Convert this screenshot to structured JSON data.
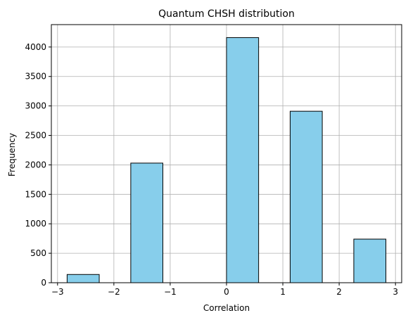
{
  "chart_data": {
    "type": "bar",
    "title": "Quantum CHSH distribution",
    "xlabel": "Correlation",
    "ylabel": "Frequency",
    "xlim": [
      -3.11,
      3.11
    ],
    "ylim": [
      0,
      4380
    ],
    "grid": true,
    "bar_color": "#87ceeb",
    "edge_color": "#000000",
    "grid_color": "#b0b0b0",
    "bins": [
      {
        "x0": -2.83,
        "x1": -2.26,
        "value": 140
      },
      {
        "x0": -2.26,
        "x1": -1.7,
        "value": 0
      },
      {
        "x0": -1.7,
        "x1": -1.13,
        "value": 2030
      },
      {
        "x0": -1.13,
        "x1": -0.57,
        "value": 0
      },
      {
        "x0": -0.57,
        "x1": 0.0,
        "value": 0
      },
      {
        "x0": 0.0,
        "x1": 0.57,
        "value": 4160
      },
      {
        "x0": 0.57,
        "x1": 1.13,
        "value": 0
      },
      {
        "x0": 1.13,
        "x1": 1.7,
        "value": 2910
      },
      {
        "x0": 1.7,
        "x1": 2.26,
        "value": 0
      },
      {
        "x0": 2.26,
        "x1": 2.83,
        "value": 740
      }
    ],
    "x_ticks": [
      {
        "value": -3,
        "label": "−3"
      },
      {
        "value": -2,
        "label": "−2"
      },
      {
        "value": -1,
        "label": "−1"
      },
      {
        "value": 0,
        "label": "0"
      },
      {
        "value": 1,
        "label": "1"
      },
      {
        "value": 2,
        "label": "2"
      },
      {
        "value": 3,
        "label": "3"
      }
    ],
    "y_ticks": [
      {
        "value": 0,
        "label": "0"
      },
      {
        "value": 500,
        "label": "500"
      },
      {
        "value": 1000,
        "label": "1000"
      },
      {
        "value": 1500,
        "label": "1500"
      },
      {
        "value": 2000,
        "label": "2000"
      },
      {
        "value": 2500,
        "label": "2500"
      },
      {
        "value": 3000,
        "label": "3000"
      },
      {
        "value": 3500,
        "label": "3500"
      },
      {
        "value": 4000,
        "label": "4000"
      }
    ]
  }
}
